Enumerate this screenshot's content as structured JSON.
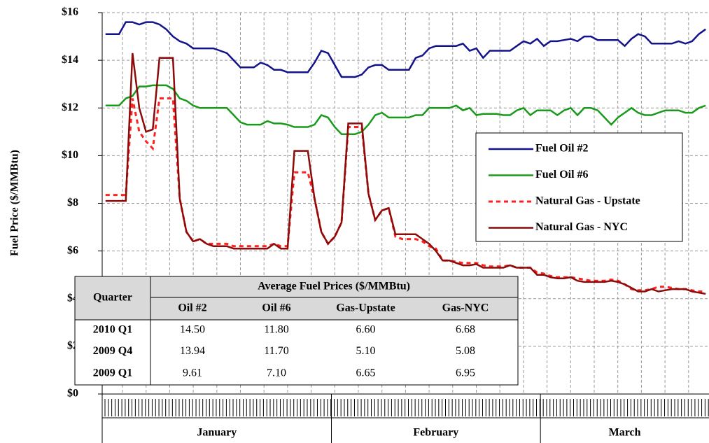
{
  "chart_data": {
    "type": "line",
    "y_label": "Fuel Price ($/MMBtu)",
    "ylim": [
      0,
      16
    ],
    "yticks": [
      {
        "value": 0,
        "label": "$0"
      },
      {
        "value": 2,
        "label": "$2"
      },
      {
        "value": 4,
        "label": "$4"
      },
      {
        "value": 6,
        "label": "$6"
      },
      {
        "value": 8,
        "label": "$8"
      },
      {
        "value": 10,
        "label": "$10"
      },
      {
        "value": 12,
        "label": "$12"
      },
      {
        "value": 14,
        "label": "$14"
      },
      {
        "value": 16,
        "label": "$16"
      }
    ],
    "grid": true,
    "legend": "right",
    "category_groups": [
      {
        "label": "January",
        "count": 34
      },
      {
        "label": "February",
        "count": 31
      },
      {
        "label": "March",
        "count": 25
      }
    ],
    "series": [
      {
        "name": "Fuel Oil #2",
        "color": "#13138c",
        "dashed": false,
        "values": [
          15.1,
          15.1,
          15.1,
          15.6,
          15.6,
          15.5,
          15.6,
          15.6,
          15.5,
          15.3,
          15.0,
          14.8,
          14.7,
          14.5,
          14.5,
          14.5,
          14.5,
          14.4,
          14.3,
          14.0,
          13.7,
          13.7,
          13.7,
          13.9,
          13.8,
          13.6,
          13.6,
          13.5,
          13.5,
          13.5,
          13.5,
          13.9,
          14.4,
          14.3,
          13.8,
          13.3,
          13.3,
          13.3,
          13.4,
          13.7,
          13.8,
          13.8,
          13.6,
          13.6,
          13.6,
          13.6,
          14.1,
          14.2,
          14.5,
          14.6,
          14.6,
          14.6,
          14.6,
          14.7,
          14.4,
          14.5,
          14.1,
          14.4,
          14.4,
          14.4,
          14.4,
          14.6,
          14.8,
          14.7,
          14.9,
          14.6,
          14.8,
          14.8,
          14.85,
          14.9,
          14.8,
          15.0,
          15.0,
          14.85,
          14.85,
          14.85,
          14.85,
          14.6,
          14.9,
          15.1,
          15.0,
          14.7,
          14.7,
          14.7,
          14.7,
          14.8,
          14.7,
          14.8,
          15.1,
          15.3
        ]
      },
      {
        "name": "Fuel Oil #6",
        "color": "#1a9a1a",
        "dashed": false,
        "values": [
          12.1,
          12.1,
          12.1,
          12.4,
          12.5,
          12.9,
          12.9,
          12.95,
          12.95,
          12.95,
          12.8,
          12.4,
          12.3,
          12.1,
          12.0,
          12.0,
          12.0,
          12.0,
          12.0,
          11.7,
          11.4,
          11.3,
          11.3,
          11.3,
          11.45,
          11.35,
          11.35,
          11.3,
          11.2,
          11.2,
          11.2,
          11.3,
          11.7,
          11.6,
          11.2,
          10.9,
          10.9,
          10.9,
          11.0,
          11.3,
          11.7,
          11.8,
          11.6,
          11.6,
          11.6,
          11.6,
          11.7,
          11.7,
          12.0,
          12.0,
          12.0,
          12.0,
          12.1,
          11.9,
          12.0,
          11.7,
          11.75,
          11.75,
          11.75,
          11.7,
          11.7,
          11.9,
          12.0,
          11.7,
          11.9,
          11.9,
          11.9,
          11.7,
          11.9,
          12.0,
          11.7,
          12.0,
          12.0,
          11.9,
          11.6,
          11.3,
          11.6,
          11.8,
          12.0,
          11.8,
          11.7,
          11.7,
          11.8,
          11.9,
          11.9,
          11.9,
          11.8,
          11.8,
          12.0,
          12.1
        ]
      },
      {
        "name": "Natural Gas - Upstate",
        "color": "#ff2020",
        "dashed": true,
        "values": [
          8.35,
          8.35,
          8.35,
          8.35,
          12.4,
          11.0,
          10.6,
          10.3,
          12.4,
          12.4,
          12.4,
          8.2,
          6.8,
          6.4,
          6.5,
          6.3,
          6.3,
          6.3,
          6.3,
          6.2,
          6.2,
          6.2,
          6.2,
          6.2,
          6.2,
          6.3,
          6.2,
          6.2,
          9.3,
          9.3,
          9.3,
          8.2,
          6.8,
          6.3,
          6.6,
          7.2,
          11.2,
          11.2,
          11.2,
          8.4,
          7.3,
          7.7,
          7.8,
          6.6,
          6.5,
          6.5,
          6.5,
          6.4,
          6.2,
          6.1,
          5.6,
          5.6,
          5.55,
          5.5,
          5.5,
          5.5,
          5.4,
          5.35,
          5.35,
          5.35,
          5.4,
          5.3,
          5.3,
          5.3,
          5.1,
          5.05,
          4.95,
          4.9,
          4.9,
          4.9,
          4.85,
          4.8,
          4.75,
          4.75,
          4.75,
          4.8,
          4.75,
          4.6,
          4.4,
          4.35,
          4.35,
          4.4,
          4.5,
          4.5,
          4.45,
          4.4,
          4.4,
          4.35,
          4.3,
          4.3
        ]
      },
      {
        "name": "Natural Gas - NYC",
        "color": "#8b0a0a",
        "dashed": false,
        "values": [
          8.1,
          8.1,
          8.1,
          8.1,
          14.3,
          12.0,
          11.0,
          11.1,
          14.1,
          14.1,
          14.1,
          8.2,
          6.8,
          6.4,
          6.5,
          6.3,
          6.2,
          6.2,
          6.2,
          6.1,
          6.1,
          6.1,
          6.1,
          6.1,
          6.1,
          6.3,
          6.1,
          6.1,
          10.2,
          10.2,
          10.2,
          8.2,
          6.8,
          6.3,
          6.6,
          7.2,
          11.35,
          11.35,
          11.35,
          8.4,
          7.3,
          7.7,
          7.8,
          6.7,
          6.7,
          6.7,
          6.7,
          6.5,
          6.3,
          6.0,
          5.6,
          5.6,
          5.5,
          5.4,
          5.4,
          5.45,
          5.3,
          5.3,
          5.3,
          5.3,
          5.4,
          5.3,
          5.3,
          5.3,
          5.0,
          5.0,
          4.9,
          4.85,
          4.85,
          4.9,
          4.75,
          4.7,
          4.7,
          4.7,
          4.7,
          4.75,
          4.7,
          4.6,
          4.45,
          4.3,
          4.3,
          4.4,
          4.3,
          4.35,
          4.4,
          4.4,
          4.4,
          4.3,
          4.25,
          4.2
        ]
      }
    ],
    "table": {
      "quarter_header": "Quarter",
      "group_header": "Average Fuel Prices ($/MMBtu)",
      "columns": [
        "Oil #2",
        "Oil #6",
        "Gas-Upstate",
        "Gas-NYC"
      ],
      "rows": [
        [
          "2010 Q1",
          "14.50",
          "11.80",
          "6.60",
          "6.68"
        ],
        [
          "2009 Q4",
          "13.94",
          "11.70",
          "5.10",
          "5.08"
        ],
        [
          "2009 Q1",
          "9.61",
          "7.10",
          "6.65",
          "6.95"
        ]
      ]
    }
  }
}
